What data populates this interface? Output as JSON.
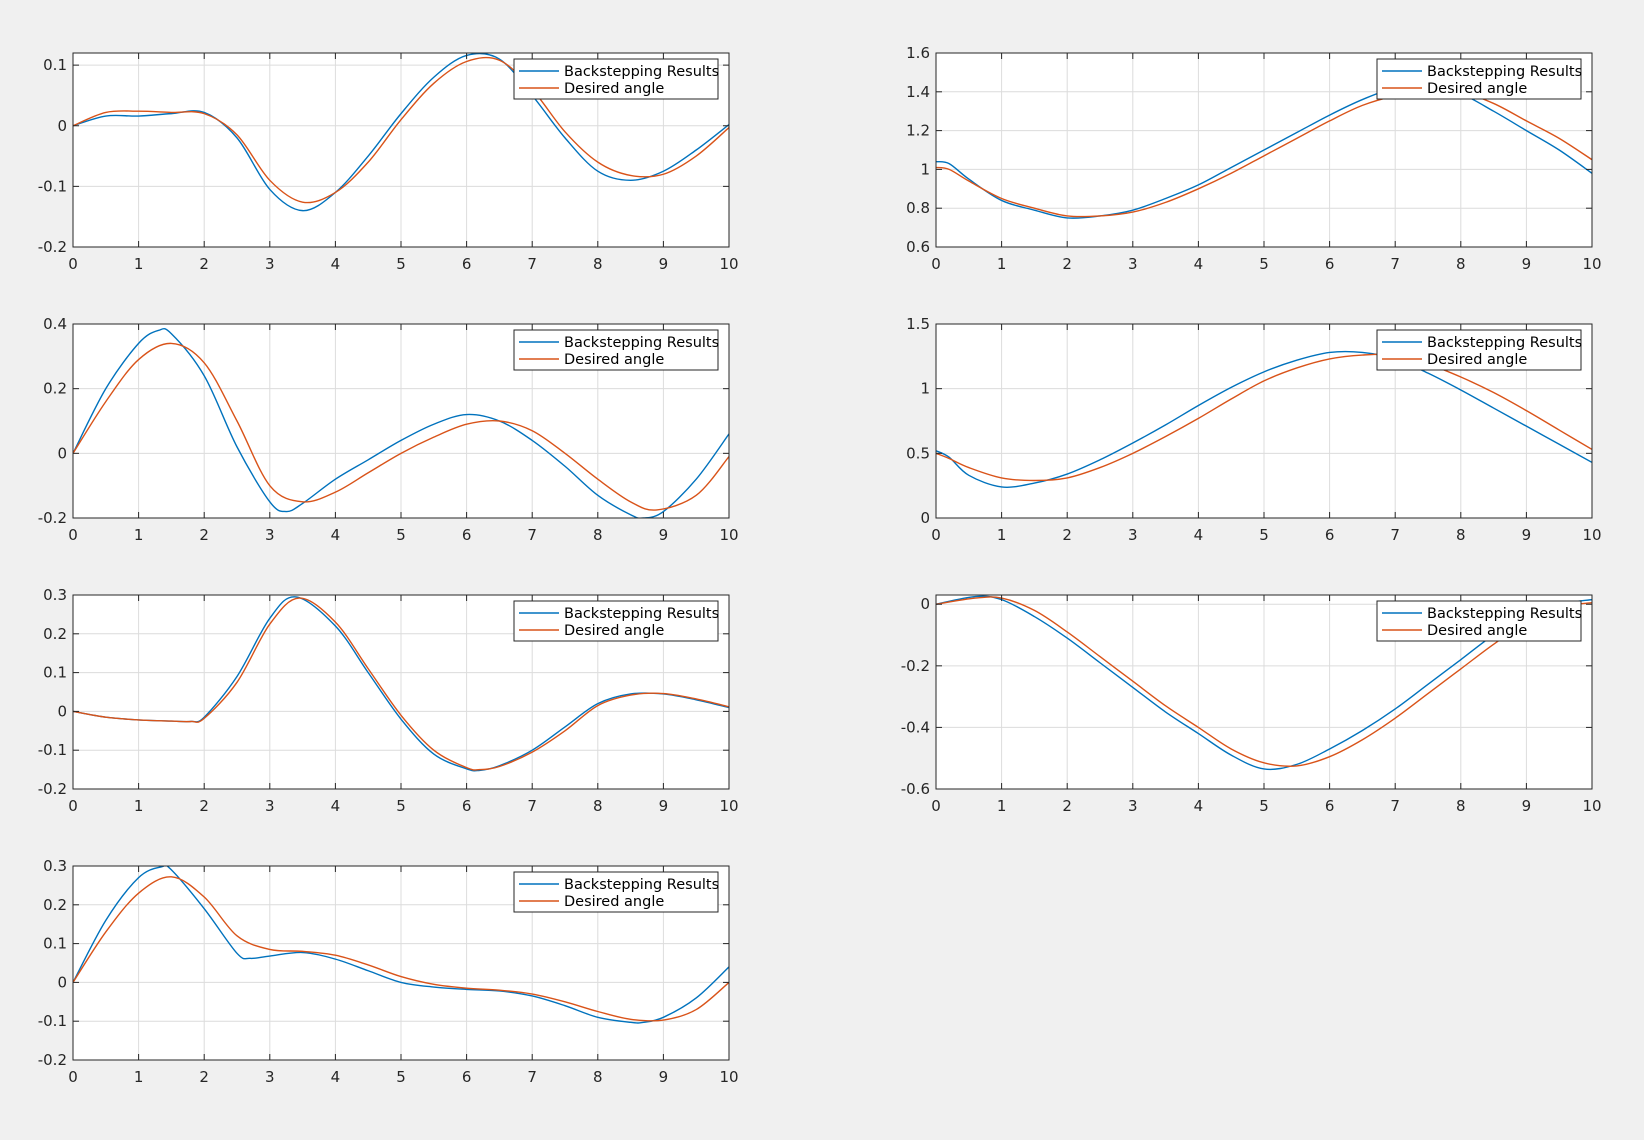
{
  "colors": {
    "figure_bg": "#f0f0f0",
    "axes_bg": "#ffffff",
    "grid": "#dcdcdc",
    "axis": "#262626",
    "series_1": "#0072BD",
    "series_2": "#D95319"
  },
  "chart_data": [
    {
      "type": "line",
      "xlim": [
        0,
        10
      ],
      "ylim": [
        -0.2,
        0.12
      ],
      "xticks": [
        0,
        1,
        2,
        3,
        4,
        5,
        6,
        7,
        8,
        9,
        10
      ],
      "yticks": [
        -0.2,
        -0.1,
        0,
        0.1
      ],
      "ytick_labels": [
        "-0.2",
        "-0.1",
        "0",
        "0.1"
      ],
      "grid": true,
      "legend": "top-right",
      "series": [
        {
          "name": "Backstepping Results",
          "color": "#0072BD",
          "x": [
            0,
            0.5,
            1,
            1.5,
            2,
            2.5,
            3,
            3.5,
            4,
            4.5,
            5,
            5.5,
            6,
            6.5,
            7,
            7.5,
            8,
            8.5,
            9,
            9.5,
            10
          ],
          "y": [
            0,
            0.016,
            0.016,
            0.02,
            0.022,
            -0.02,
            -0.105,
            -0.14,
            -0.11,
            -0.05,
            0.02,
            0.08,
            0.116,
            0.11,
            0.05,
            -0.02,
            -0.075,
            -0.09,
            -0.075,
            -0.04,
            0.002
          ]
        },
        {
          "name": "Desired angle",
          "color": "#D95319",
          "x": [
            0,
            0.5,
            1,
            1.5,
            2,
            2.5,
            3,
            3.5,
            4,
            4.5,
            5,
            5.5,
            6,
            6.5,
            7,
            7.5,
            8,
            8.5,
            9,
            9.5,
            10
          ],
          "y": [
            0,
            0.022,
            0.024,
            0.022,
            0.02,
            -0.015,
            -0.09,
            -0.126,
            -0.11,
            -0.06,
            0.01,
            0.07,
            0.106,
            0.108,
            0.06,
            -0.01,
            -0.06,
            -0.082,
            -0.08,
            -0.05,
            -0.003
          ]
        }
      ]
    },
    {
      "type": "line",
      "xlim": [
        0,
        10
      ],
      "ylim": [
        0.6,
        1.6
      ],
      "xticks": [
        0,
        1,
        2,
        3,
        4,
        5,
        6,
        7,
        8,
        9,
        10
      ],
      "yticks": [
        0.6,
        0.8,
        1.0,
        1.2,
        1.4,
        1.6
      ],
      "ytick_labels": [
        "0.6",
        "0.8",
        "1",
        "1.2",
        "1.4",
        "1.6"
      ],
      "grid": true,
      "legend": "top-right",
      "series": [
        {
          "name": "Backstepping Results",
          "color": "#0072BD",
          "x": [
            0,
            0.2,
            0.5,
            1,
            1.5,
            2,
            2.5,
            3,
            3.5,
            4,
            4.5,
            5,
            5.5,
            6,
            6.5,
            7,
            7.5,
            8,
            8.5,
            9,
            9.5,
            10
          ],
          "y": [
            1.04,
            1.03,
            0.95,
            0.84,
            0.79,
            0.75,
            0.76,
            0.79,
            0.85,
            0.92,
            1.01,
            1.1,
            1.19,
            1.28,
            1.36,
            1.42,
            1.43,
            1.39,
            1.3,
            1.2,
            1.1,
            0.98
          ]
        },
        {
          "name": "Desired angle",
          "color": "#D95319",
          "x": [
            0,
            0.2,
            0.5,
            1,
            1.5,
            2,
            2.5,
            3,
            3.5,
            4,
            4.5,
            5,
            5.5,
            6,
            6.5,
            7,
            7.5,
            8,
            8.5,
            9,
            9.5,
            10
          ],
          "y": [
            1.01,
            1.0,
            0.94,
            0.85,
            0.8,
            0.76,
            0.76,
            0.78,
            0.83,
            0.9,
            0.98,
            1.07,
            1.16,
            1.25,
            1.33,
            1.38,
            1.41,
            1.4,
            1.34,
            1.25,
            1.16,
            1.05
          ]
        }
      ]
    },
    {
      "type": "line",
      "xlim": [
        0,
        10
      ],
      "ylim": [
        -0.2,
        0.4
      ],
      "xticks": [
        0,
        1,
        2,
        3,
        4,
        5,
        6,
        7,
        8,
        9,
        10
      ],
      "yticks": [
        -0.2,
        0,
        0.2,
        0.4
      ],
      "ytick_labels": [
        "-0.2",
        "0",
        "0.2",
        "0.4"
      ],
      "grid": true,
      "legend": "top-right",
      "series": [
        {
          "name": "Backstepping Results",
          "color": "#0072BD",
          "x": [
            0,
            0.5,
            1,
            1.3,
            1.5,
            2,
            2.5,
            3,
            3.25,
            3.5,
            4,
            4.5,
            5,
            5.5,
            6,
            6.5,
            7,
            7.5,
            8,
            8.5,
            8.7,
            9,
            9.5,
            10
          ],
          "y": [
            0,
            0.2,
            0.34,
            0.38,
            0.37,
            0.24,
            0.02,
            -0.15,
            -0.18,
            -0.155,
            -0.08,
            -0.02,
            0.04,
            0.09,
            0.12,
            0.1,
            0.04,
            -0.04,
            -0.13,
            -0.19,
            -0.2,
            -0.18,
            -0.08,
            0.06
          ]
        },
        {
          "name": "Desired angle",
          "color": "#D95319",
          "x": [
            0,
            0.5,
            1,
            1.5,
            2,
            2.5,
            3,
            3.5,
            4,
            4.5,
            5,
            5.5,
            6,
            6.5,
            7,
            7.5,
            8,
            8.5,
            8.9,
            9.5,
            10
          ],
          "y": [
            0,
            0.16,
            0.29,
            0.34,
            0.28,
            0.1,
            -0.1,
            -0.15,
            -0.12,
            -0.06,
            0.0,
            0.05,
            0.09,
            0.1,
            0.07,
            0.0,
            -0.08,
            -0.15,
            -0.175,
            -0.13,
            -0.01
          ]
        }
      ]
    },
    {
      "type": "line",
      "xlim": [
        0,
        10
      ],
      "ylim": [
        0,
        1.5
      ],
      "xticks": [
        0,
        1,
        2,
        3,
        4,
        5,
        6,
        7,
        8,
        9,
        10
      ],
      "yticks": [
        0,
        0.5,
        1.0,
        1.5
      ],
      "ytick_labels": [
        "0",
        "0.5",
        "1",
        "1.5"
      ],
      "grid": true,
      "legend": "top-right",
      "series": [
        {
          "name": "Backstepping Results",
          "color": "#0072BD",
          "x": [
            0,
            0.2,
            0.5,
            1,
            1.5,
            2,
            2.5,
            3,
            3.5,
            4,
            4.5,
            5,
            5.5,
            6,
            6.5,
            7,
            7.5,
            8,
            8.5,
            9,
            9.5,
            10
          ],
          "y": [
            0.52,
            0.47,
            0.33,
            0.24,
            0.27,
            0.34,
            0.45,
            0.58,
            0.72,
            0.87,
            1.01,
            1.13,
            1.22,
            1.28,
            1.28,
            1.23,
            1.12,
            0.99,
            0.85,
            0.71,
            0.57,
            0.43
          ]
        },
        {
          "name": "Desired angle",
          "color": "#D95319",
          "x": [
            0,
            0.2,
            0.5,
            1,
            1.5,
            2,
            2.5,
            3,
            3.5,
            4,
            4.5,
            5,
            5.5,
            6,
            6.5,
            7,
            7.5,
            8,
            8.5,
            9,
            9.5,
            10
          ],
          "y": [
            0.5,
            0.46,
            0.39,
            0.31,
            0.29,
            0.31,
            0.39,
            0.5,
            0.63,
            0.77,
            0.92,
            1.06,
            1.16,
            1.23,
            1.26,
            1.26,
            1.19,
            1.09,
            0.97,
            0.83,
            0.68,
            0.53
          ]
        }
      ]
    },
    {
      "type": "line",
      "xlim": [
        0,
        10
      ],
      "ylim": [
        -0.2,
        0.3
      ],
      "xticks": [
        0,
        1,
        2,
        3,
        4,
        5,
        6,
        7,
        8,
        9,
        10
      ],
      "yticks": [
        -0.2,
        -0.1,
        0,
        0.1,
        0.2,
        0.3
      ],
      "ytick_labels": [
        "-0.2",
        "-0.1",
        "0",
        "0.1",
        "0.2",
        "0.3"
      ],
      "grid": true,
      "legend": "top-right",
      "series": [
        {
          "name": "Backstepping Results",
          "color": "#0072BD",
          "x": [
            0,
            0.5,
            1,
            1.5,
            1.8,
            2,
            2.5,
            3,
            3.4,
            4,
            4.5,
            5,
            5.5,
            6,
            6.2,
            6.5,
            7,
            7.5,
            8,
            8.5,
            9,
            9.5,
            10
          ],
          "y": [
            0,
            -0.015,
            -0.022,
            -0.025,
            -0.026,
            -0.015,
            0.09,
            0.24,
            0.295,
            0.22,
            0.1,
            -0.02,
            -0.11,
            -0.148,
            -0.152,
            -0.14,
            -0.1,
            -0.04,
            0.02,
            0.045,
            0.045,
            0.03,
            0.01
          ]
        },
        {
          "name": "Desired angle",
          "color": "#D95319",
          "x": [
            0,
            0.5,
            1,
            1.5,
            1.8,
            2,
            2.5,
            3,
            3.45,
            4,
            4.5,
            5,
            5.5,
            6,
            6.2,
            6.5,
            7,
            7.5,
            8,
            8.5,
            9,
            9.5,
            10
          ],
          "y": [
            0,
            -0.015,
            -0.022,
            -0.025,
            -0.026,
            -0.018,
            0.075,
            0.225,
            0.292,
            0.23,
            0.11,
            -0.01,
            -0.1,
            -0.145,
            -0.15,
            -0.142,
            -0.105,
            -0.05,
            0.015,
            0.042,
            0.046,
            0.032,
            0.012
          ]
        }
      ]
    },
    {
      "type": "line",
      "xlim": [
        0,
        10
      ],
      "ylim": [
        -0.6,
        0.03
      ],
      "xticks": [
        0,
        1,
        2,
        3,
        4,
        5,
        6,
        7,
        8,
        9,
        10
      ],
      "yticks": [
        -0.6,
        -0.4,
        -0.2,
        0
      ],
      "ytick_labels": [
        "-0.6",
        "-0.4",
        "-0.2",
        "0"
      ],
      "grid": true,
      "legend": "top-right",
      "series": [
        {
          "name": "Backstepping Results",
          "color": "#0072BD",
          "x": [
            0,
            0.6,
            1,
            1.5,
            2,
            2.5,
            3,
            3.5,
            4,
            4.5,
            5,
            5.5,
            6,
            6.5,
            7,
            7.5,
            8,
            8.5,
            9,
            9.5,
            10
          ],
          "y": [
            0,
            0.025,
            0.015,
            -0.04,
            -0.11,
            -0.19,
            -0.27,
            -0.35,
            -0.42,
            -0.49,
            -0.535,
            -0.52,
            -0.47,
            -0.41,
            -0.34,
            -0.26,
            -0.18,
            -0.1,
            -0.04,
            0.0,
            0.015
          ]
        },
        {
          "name": "Desired angle",
          "color": "#D95319",
          "x": [
            0,
            0.6,
            1,
            1.5,
            2,
            2.5,
            3,
            3.5,
            4,
            4.5,
            5,
            5.5,
            6,
            6.5,
            7,
            7.5,
            8,
            8.5,
            9,
            9.5,
            10
          ],
          "y": [
            0,
            0.02,
            0.02,
            -0.02,
            -0.09,
            -0.17,
            -0.25,
            -0.33,
            -0.4,
            -0.47,
            -0.515,
            -0.525,
            -0.495,
            -0.44,
            -0.37,
            -0.29,
            -0.21,
            -0.13,
            -0.06,
            -0.01,
            0.005
          ]
        }
      ]
    },
    {
      "type": "line",
      "xlim": [
        0,
        10
      ],
      "ylim": [
        -0.2,
        0.3
      ],
      "xticks": [
        0,
        1,
        2,
        3,
        4,
        5,
        6,
        7,
        8,
        9,
        10
      ],
      "yticks": [
        -0.2,
        -0.1,
        0,
        0.1,
        0.2,
        0.3
      ],
      "ytick_labels": [
        "-0.2",
        "-0.1",
        "0",
        "0.1",
        "0.2",
        "0.3"
      ],
      "grid": true,
      "legend": "top-right",
      "series": [
        {
          "name": "Backstepping Results",
          "color": "#0072BD",
          "x": [
            0,
            0.5,
            1,
            1.35,
            1.5,
            2,
            2.5,
            2.7,
            3,
            3.5,
            4,
            4.5,
            5,
            5.5,
            6,
            6.5,
            7,
            7.5,
            8,
            8.5,
            8.7,
            9,
            9.5,
            10
          ],
          "y": [
            0,
            0.16,
            0.27,
            0.298,
            0.29,
            0.19,
            0.075,
            0.062,
            0.068,
            0.077,
            0.06,
            0.03,
            0.0,
            -0.012,
            -0.018,
            -0.022,
            -0.035,
            -0.06,
            -0.09,
            -0.103,
            -0.103,
            -0.09,
            -0.04,
            0.04
          ]
        },
        {
          "name": "Desired angle",
          "color": "#D95319",
          "x": [
            0,
            0.5,
            1,
            1.5,
            2,
            2.5,
            3,
            3.5,
            4,
            4.5,
            5,
            5.5,
            6,
            6.5,
            7,
            7.5,
            8,
            8.5,
            9,
            9.5,
            10
          ],
          "y": [
            0,
            0.13,
            0.23,
            0.272,
            0.22,
            0.12,
            0.085,
            0.08,
            0.07,
            0.045,
            0.015,
            -0.005,
            -0.015,
            -0.02,
            -0.03,
            -0.05,
            -0.075,
            -0.095,
            -0.097,
            -0.07,
            0.0
          ]
        }
      ]
    }
  ]
}
